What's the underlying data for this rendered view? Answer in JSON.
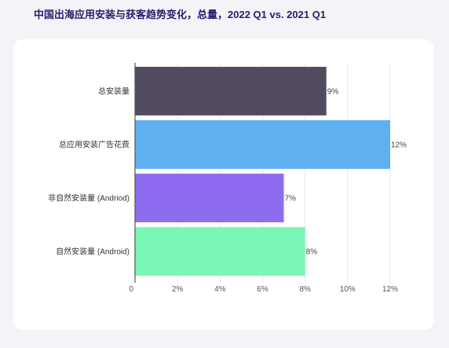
{
  "title": "中国出海应用安装与获客趋势变化，总量，2022 Q1 vs. 2021 Q1",
  "chart_data": {
    "type": "bar",
    "orientation": "horizontal",
    "title": "中国出海应用安装与获客趋势变化，总量，2022 Q1 vs. 2021 Q1",
    "categories": [
      "总安装量",
      "总应用安装广告花费",
      "非自然安装量 (Andriod)",
      "自然安装量 (Android)"
    ],
    "values": [
      9,
      12,
      7,
      8
    ],
    "data_labels": [
      "9%",
      "12%",
      "7%",
      "8%"
    ],
    "colors": [
      "#524b5f",
      "#5fb0f0",
      "#8e6cf0",
      "#7af7b6"
    ],
    "xlim": [
      0,
      12
    ],
    "x_ticks": [
      0,
      2,
      4,
      6,
      8,
      10,
      12
    ],
    "x_tick_labels": [
      "0",
      "2%",
      "4%",
      "6%",
      "8%",
      "10%",
      "12%"
    ],
    "grid": true
  }
}
